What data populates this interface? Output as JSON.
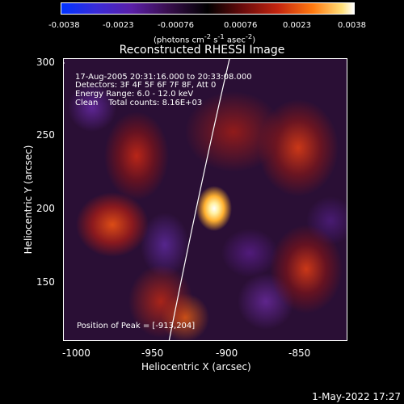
{
  "colorbar": {
    "ticks": [
      "-0.0038",
      "-0.0023",
      "-0.00076",
      "0.00076",
      "0.0023",
      "0.0038"
    ],
    "units_prefix": "(photons cm",
    "units_exp1": "-2",
    "units_mid": " s",
    "units_exp2": "-1",
    "units_mid2": " asec",
    "units_exp3": "-2",
    "units_suffix": ")",
    "colors": [
      "#0033ff",
      "#000000",
      "#ff7a10",
      "#ffffff"
    ]
  },
  "title": "Reconstructed RHESSI Image",
  "annotations": {
    "line1": "17-Aug-2005 20:31:16.000 to 20:33:08.000",
    "line2": "Detectors: 3F 4F 5F 6F 7F 8F, Att 0",
    "line3": "Energy Range: 6.0 - 12.0 keV",
    "line4": "Clean    Total counts: 8.16E+03",
    "peak": "Position of Peak = [-913,204]"
  },
  "axes": {
    "xlabel": "Heliocentric X (arcsec)",
    "ylabel": "Heliocentric Y (arcsec)",
    "xticks": [
      "-1000",
      "-950",
      "-900",
      "-850"
    ],
    "yticks": [
      "300",
      "250",
      "200",
      "150"
    ]
  },
  "timestamp": "1-May-2022 17:27"
}
